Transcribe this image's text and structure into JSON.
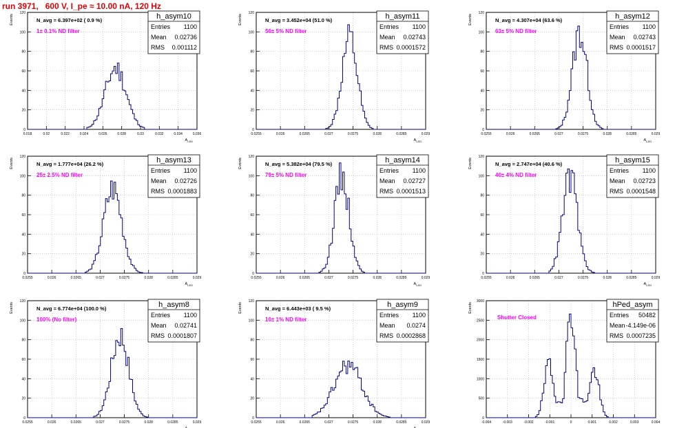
{
  "page_title": "run 3971,   600 V, I_pe ≈ 10.00 nA, 120 Hz",
  "stats_labels": {
    "entries": "Entries",
    "mean": "Mean",
    "rms": "RMS"
  },
  "colors": {
    "title": "#e00000",
    "note": "#ff00ff",
    "line": "#000080",
    "grid": "#b0b0b0",
    "frame": "#000000"
  },
  "chart_data": [
    {
      "type": "bar",
      "name": "h_asym10",
      "ylabel": "Events",
      "xlabel": "A_LED",
      "stats": {
        "entries": "1100",
        "mean": "0.02736",
        "rms": "0.001112"
      },
      "navg": "N_avg = 6.397e+02 ( 0.9 %)",
      "note": "1± 0.1% ND filter",
      "xlim": [
        0.018,
        0.036
      ],
      "ylim": [
        0,
        120
      ],
      "xticks": [
        "0.018",
        "0.02",
        "0.022",
        "0.024",
        "0.026",
        "0.028",
        "0.03",
        "0.032",
        "0.034",
        "0.036"
      ],
      "yticks": [
        "0",
        "20",
        "40",
        "60",
        "80",
        "100",
        "120"
      ],
      "shape": {
        "type": "gauss",
        "mean": 0.02736,
        "sigma": 0.001112,
        "peak": 63,
        "lo": 0.0243,
        "hi": 0.0305,
        "bins": 100,
        "seed": 11
      }
    },
    {
      "type": "bar",
      "name": "h_asym11",
      "ylabel": "Events",
      "xlabel": "A_LED",
      "stats": {
        "entries": "1100",
        "mean": "0.02743",
        "rms": "0.0001572"
      },
      "navg": "N_avg = 3.452e+04 (51.0 %)",
      "note": "50± 5% ND filter",
      "xlim": [
        0.0255,
        0.029
      ],
      "ylim": [
        0,
        120
      ],
      "xticks": [
        "0.0255",
        "0.026",
        "0.0265",
        "0.027",
        "0.0275",
        "0.028",
        "0.0285",
        "0.029"
      ],
      "yticks": [
        "0",
        "20",
        "40",
        "60",
        "80",
        "100",
        "120"
      ],
      "shape": {
        "type": "gauss",
        "mean": 0.02743,
        "sigma": 0.0001572,
        "peak": 92,
        "lo": 0.02695,
        "hi": 0.0279,
        "bins": 100,
        "seed": 12
      }
    },
    {
      "type": "bar",
      "name": "h_asym12",
      "ylabel": "Events",
      "xlabel": "A_LED",
      "stats": {
        "entries": "1100",
        "mean": "0.02743",
        "rms": "0.0001517"
      },
      "navg": "N_avg = 4.307e+04 (63.6 %)",
      "note": "63± 5% ND filter",
      "xlim": [
        0.0255,
        0.029
      ],
      "ylim": [
        0,
        120
      ],
      "xticks": [
        "0.0255",
        "0.026",
        "0.0265",
        "0.027",
        "0.0275",
        "0.028",
        "0.0285",
        "0.029"
      ],
      "yticks": [
        "0",
        "20",
        "40",
        "60",
        "80",
        "100",
        "120"
      ],
      "shape": {
        "type": "gauss",
        "mean": 0.02743,
        "sigma": 0.0001517,
        "peak": 100,
        "lo": 0.02695,
        "hi": 0.0279,
        "bins": 100,
        "seed": 13
      }
    },
    {
      "type": "bar",
      "name": "h_asym13",
      "ylabel": "Events",
      "xlabel": "A_LED",
      "stats": {
        "entries": "1100",
        "mean": "0.02726",
        "rms": "0.0001883"
      },
      "navg": "N_avg = 1.777e+04 (26.2 %)",
      "note": "25± 2.5% ND filter",
      "xlim": [
        0.0255,
        0.029
      ],
      "ylim": [
        0,
        120
      ],
      "xticks": [
        "0.0255",
        "0.026",
        "0.0265",
        "0.027",
        "0.0275",
        "0.028",
        "0.0285",
        "0.029"
      ],
      "yticks": [
        "0",
        "20",
        "40",
        "60",
        "80",
        "100",
        "120"
      ],
      "shape": {
        "type": "gauss",
        "mean": 0.02726,
        "sigma": 0.0001883,
        "peak": 87,
        "lo": 0.0267,
        "hi": 0.0279,
        "bins": 100,
        "seed": 14
      }
    },
    {
      "type": "bar",
      "name": "h_asym14",
      "ylabel": "Events",
      "xlabel": "A_LED",
      "stats": {
        "entries": "1100",
        "mean": "0.02727",
        "rms": "0.0001513"
      },
      "navg": "N_avg = 5.382e+04 (79.5 %)",
      "note": "79± 5% ND filter",
      "xlim": [
        0.0255,
        0.029
      ],
      "ylim": [
        0,
        120
      ],
      "xticks": [
        "0.0255",
        "0.026",
        "0.0265",
        "0.027",
        "0.0275",
        "0.028",
        "0.0285",
        "0.029"
      ],
      "yticks": [
        "0",
        "20",
        "40",
        "60",
        "80",
        "100",
        "120"
      ],
      "shape": {
        "type": "gauss",
        "mean": 0.02727,
        "sigma": 0.0001513,
        "peak": 100,
        "lo": 0.0268,
        "hi": 0.0278,
        "bins": 100,
        "seed": 15
      }
    },
    {
      "type": "bar",
      "name": "h_asym15",
      "ylabel": "Events",
      "xlabel": "A_LED",
      "stats": {
        "entries": "1100",
        "mean": "0.02723",
        "rms": "0.0001548"
      },
      "navg": "N_avg = 2.747e+04 (40.6 %)",
      "note": "40± 4% ND filter",
      "xlim": [
        0.0255,
        0.029
      ],
      "ylim": [
        0,
        120
      ],
      "xticks": [
        "0.0255",
        "0.026",
        "0.0265",
        "0.027",
        "0.0275",
        "0.028",
        "0.0285",
        "0.029"
      ],
      "yticks": [
        "0",
        "20",
        "40",
        "60",
        "80",
        "100",
        "120"
      ],
      "shape": {
        "type": "gauss",
        "mean": 0.02723,
        "sigma": 0.0001548,
        "peak": 98,
        "lo": 0.0268,
        "hi": 0.02785,
        "bins": 100,
        "seed": 16
      }
    },
    {
      "type": "bar",
      "name": "h_asym8",
      "ylabel": "Events",
      "xlabel": "A_LED",
      "stats": {
        "entries": "1100",
        "mean": "0.02741",
        "rms": "0.0001807"
      },
      "navg": "N_avg = 6.774e+04 (100.0 %)",
      "note": "100% (No filter)",
      "xlim": [
        0.0255,
        0.029
      ],
      "ylim": [
        0,
        120
      ],
      "xticks": [
        "0.0255",
        "0.026",
        "0.0265",
        "0.027",
        "0.0275",
        "0.028",
        "0.0285",
        "0.029"
      ],
      "yticks": [
        "0",
        "20",
        "40",
        "60",
        "80",
        "100",
        "120"
      ],
      "shape": {
        "type": "gauss",
        "mean": 0.02741,
        "sigma": 0.0001807,
        "peak": 86,
        "lo": 0.02685,
        "hi": 0.0281,
        "bins": 100,
        "seed": 17
      }
    },
    {
      "type": "bar",
      "name": "h_asym9",
      "ylabel": "Events",
      "xlabel": "A_LED",
      "stats": {
        "entries": "1100",
        "mean": "0.0274",
        "rms": "0.0002868"
      },
      "navg": "N_avg = 6.443e+03 ( 9.5 %)",
      "note": "10± 1% ND filter",
      "xlim": [
        0.0255,
        0.029
      ],
      "ylim": [
        0,
        120
      ],
      "xticks": [
        "0.0255",
        "0.026",
        "0.0265",
        "0.027",
        "0.0275",
        "0.028",
        "0.0285",
        "0.029"
      ],
      "yticks": [
        "0",
        "20",
        "40",
        "60",
        "80",
        "100",
        "120"
      ],
      "shape": {
        "type": "gauss",
        "mean": 0.0274,
        "sigma": 0.0002868,
        "peak": 54,
        "lo": 0.02665,
        "hi": 0.02825,
        "bins": 100,
        "seed": 18
      }
    },
    {
      "type": "bar",
      "name": "hPed_asym",
      "ylabel": "Events",
      "xlabel": "",
      "stats": {
        "entries": "50482",
        "mean": "-4.149e-06",
        "rms": "0.0007235"
      },
      "navg": "",
      "note": "Shutter Closed",
      "xlim": [
        -0.004,
        0.004
      ],
      "ylim": [
        0,
        3000
      ],
      "xticks": [
        "-0.004",
        "-0.003",
        "-0.002",
        "-0.001",
        "0",
        "0.001",
        "0.002",
        "0.003",
        "0.004"
      ],
      "yticks": [
        "0",
        "500",
        "1000",
        "1500",
        "2000",
        "2500",
        "3000"
      ],
      "shape": {
        "type": "multi",
        "components": [
          [
            -0.00105,
            0.00022,
            1320
          ],
          [
            0.0,
            0.0002,
            2850
          ],
          [
            0.0011,
            0.00022,
            1220
          ]
        ],
        "floor": 420,
        "floorlo": -0.0012,
        "floorhi": 0.0011,
        "lo": -0.0022,
        "hi": 0.0018,
        "bins": 100,
        "seed": 19
      }
    }
  ]
}
